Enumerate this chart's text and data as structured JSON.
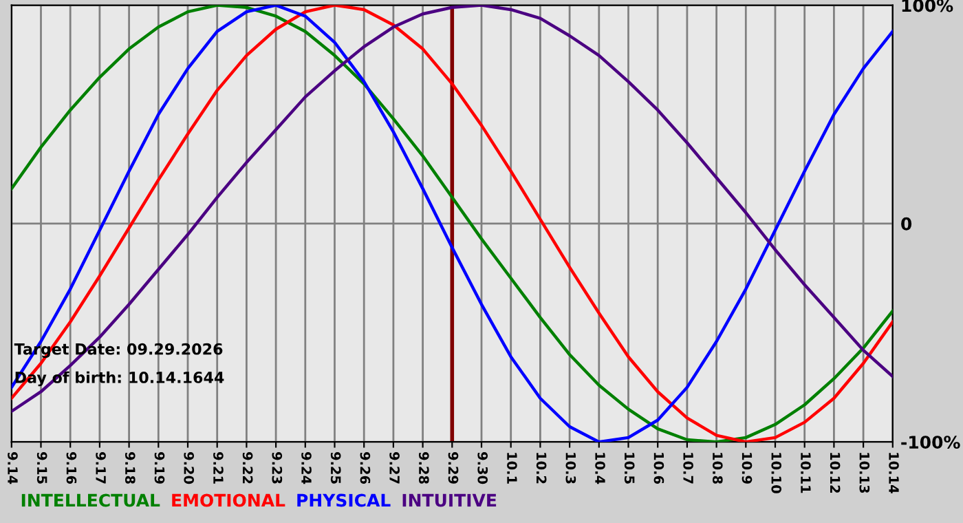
{
  "chart_data": {
    "type": "line",
    "categories": [
      "9.14",
      "9.15",
      "9.16",
      "9.17",
      "9.18",
      "9.19",
      "9.20",
      "9.21",
      "9.22",
      "9.23",
      "9.24",
      "9.25",
      "9.26",
      "9.27",
      "9.28",
      "9.29",
      "9.30",
      "10.1",
      "10.2",
      "10.3",
      "10.4",
      "10.5",
      "10.6",
      "10.7",
      "10.8",
      "10.9",
      "10.10",
      "10.11",
      "10.12",
      "10.13",
      "10.14"
    ],
    "series": [
      {
        "name": "INTELLECTUAL",
        "color": "#008000",
        "values": [
          16,
          35,
          52,
          67,
          80,
          90,
          97,
          100,
          99,
          95,
          88,
          77,
          64,
          48,
          31,
          12,
          -7,
          -25,
          -43,
          -60,
          -74,
          -85,
          -94,
          -99,
          -100,
          -98,
          -92,
          -83,
          -71,
          -57,
          -40
        ]
      },
      {
        "name": "EMOTIONAL",
        "color": "#ff0000",
        "values": [
          -80,
          -64,
          -45,
          -24,
          -2,
          20,
          41,
          61,
          77,
          89,
          97,
          100,
          98,
          91,
          80,
          64,
          45,
          24,
          2,
          -20,
          -41,
          -61,
          -77,
          -89,
          -97,
          -100,
          -98,
          -91,
          -80,
          -64,
          -45
        ]
      },
      {
        "name": "PHYSICAL",
        "color": "#0000ff",
        "values": [
          -75,
          -54,
          -30,
          -3,
          24,
          50,
          71,
          88,
          97,
          100,
          95,
          83,
          65,
          42,
          16,
          -11,
          -37,
          -61,
          -80,
          -93,
          -100,
          -98,
          -90,
          -75,
          -54,
          -30,
          -3,
          24,
          50,
          71,
          88
        ]
      },
      {
        "name": "INTUITIVE",
        "color": "#4b0082",
        "values": [
          -86,
          -77,
          -65,
          -52,
          -37,
          -21,
          -5,
          12,
          28,
          43,
          58,
          70,
          81,
          90,
          96,
          99,
          100,
          98,
          94,
          86,
          77,
          65,
          52,
          37,
          21,
          5,
          -12,
          -28,
          -43,
          -58,
          -70
        ]
      }
    ],
    "ylim": [
      -100,
      100
    ],
    "yticks": [
      {
        "value": -100,
        "label": "-100%"
      },
      0,
      {
        "value": 100,
        "label": "100%"
      }
    ],
    "grid": true,
    "legend": "bottom left",
    "ref_lines": [
      {
        "axis": "x",
        "value": "9.29",
        "label": null,
        "color": "#800000"
      }
    ],
    "annotations": [
      "Target Date: 09.29.2026",
      "Day of birth: 10.14.1644"
    ]
  }
}
